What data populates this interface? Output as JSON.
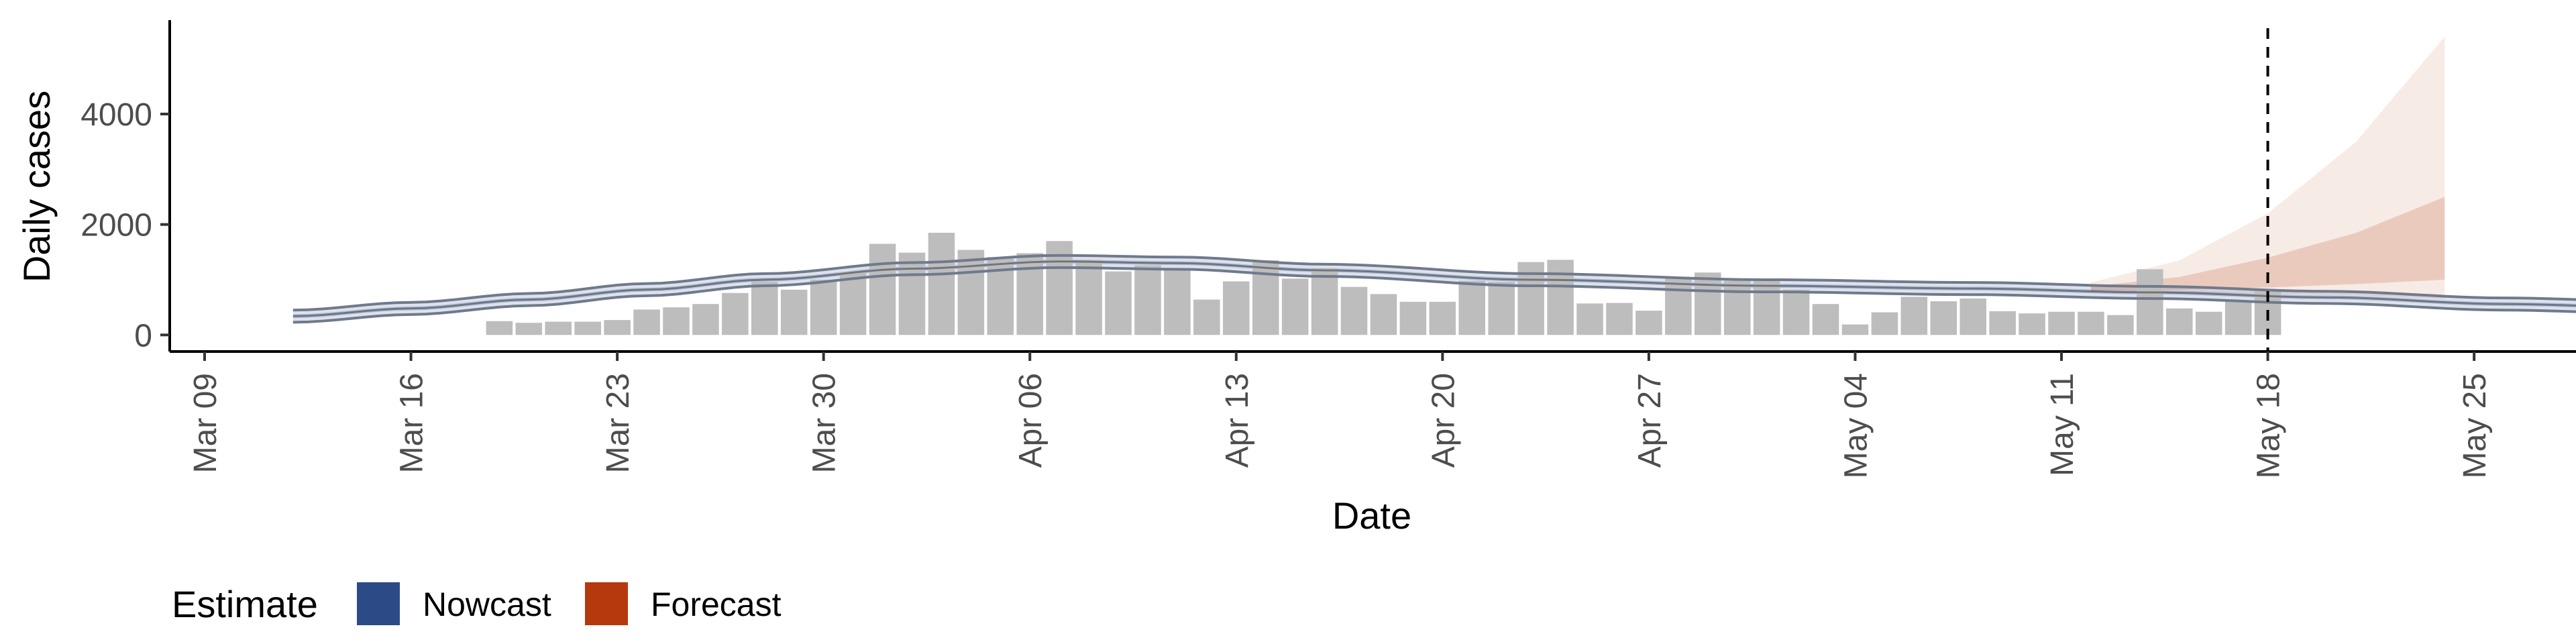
{
  "chart_data": {
    "type": "bar",
    "xlabel": "Date",
    "ylabel": "Daily cases",
    "ylim": [
      -300,
      5700
    ],
    "y_ticks": [
      0,
      2000,
      4000
    ],
    "y_tick_labels": [
      "0",
      "2000",
      "4000"
    ],
    "x_ticks": [
      "2020-03-09",
      "2020-03-16",
      "2020-03-23",
      "2020-03-30",
      "2020-04-06",
      "2020-04-13",
      "2020-04-20",
      "2020-04-27",
      "2020-05-04",
      "2020-05-11",
      "2020-05-18",
      "2020-05-25"
    ],
    "x_tick_labels": [
      "Mar 09",
      "Mar 16",
      "Mar 23",
      "Mar 30",
      "Apr 06",
      "Apr 13",
      "Apr 20",
      "Apr 27",
      "May 04",
      "May 11",
      "May 18",
      "May 25"
    ],
    "x_range": [
      "2020-03-09",
      "2020-05-27"
    ],
    "grid": false,
    "bar_color": "#bdbdbd",
    "reported_cases": {
      "start_date": "2020-03-12",
      "values": [
        0,
        0,
        0,
        0,
        0,
        0,
        0,
        250,
        220,
        240,
        240,
        270,
        460,
        500,
        560,
        760,
        960,
        820,
        1000,
        1130,
        1650,
        1490,
        1850,
        1540,
        1410,
        1480,
        1700,
        1360,
        1150,
        1260,
        1200,
        640,
        970,
        1350,
        1020,
        1210,
        870,
        740,
        600,
        600,
        980,
        960,
        1320,
        1360,
        570,
        580,
        440,
        1050,
        1130,
        980,
        980,
        820,
        560,
        190,
        410,
        690,
        610,
        660,
        430,
        390,
        420,
        420,
        360,
        1190,
        480,
        420,
        620,
        790
      ]
    },
    "nowcast": {
      "name": "Nowcast",
      "color": "#2b4a86",
      "start_date": "2020-03-12",
      "end_date": "2020-05-11",
      "median": [
        [
          0,
          340
        ],
        [
          4,
          480
        ],
        [
          8,
          640
        ],
        [
          12,
          820
        ],
        [
          16,
          1000
        ],
        [
          21,
          1200
        ],
        [
          26,
          1330
        ],
        [
          30,
          1300
        ],
        [
          35,
          1170
        ],
        [
          42,
          1000
        ],
        [
          50,
          890
        ],
        [
          57,
          840
        ],
        [
          63,
          770
        ],
        [
          69,
          680
        ],
        [
          75,
          560
        ],
        [
          80,
          500
        ],
        [
          86,
          520
        ],
        [
          91,
          590
        ],
        [
          96,
          680
        ],
        [
          99,
          760
        ]
      ],
      "halfwidth_50": 35,
      "halfwidth_90": 110
    },
    "forecast": {
      "name": "Forecast",
      "color": "#b5390c",
      "start_date": "2020-05-12",
      "end_date": "2020-05-24",
      "x": [
        0,
        3,
        6,
        9,
        12
      ],
      "band_90_low": [
        780,
        760,
        740,
        720,
        650
      ],
      "band_90_high": [
        950,
        1350,
        2200,
        3500,
        5400
      ],
      "band_50_low": [
        800,
        820,
        860,
        920,
        1000
      ],
      "band_50_high": [
        880,
        1050,
        1400,
        1850,
        2500
      ]
    },
    "forecast_date": "2020-05-18",
    "legend": {
      "title": "Estimate",
      "position": "bottom-left",
      "entries": [
        {
          "label": "Nowcast",
          "color": "#2b4a86"
        },
        {
          "label": "Forecast",
          "color": "#b5390c"
        }
      ]
    }
  }
}
